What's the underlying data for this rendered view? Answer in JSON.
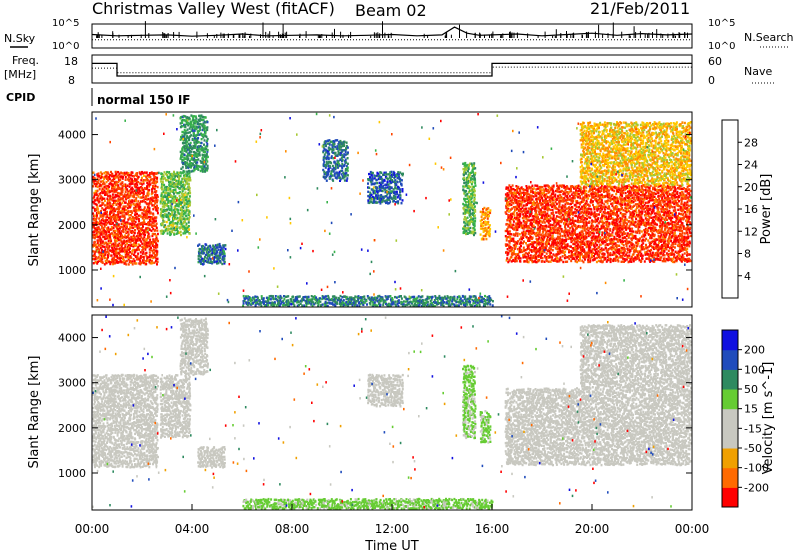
{
  "header": {
    "station": "Christmas Valley West (fitACF)",
    "beam": "Beam 02",
    "date": "21/Feb/2011"
  },
  "left_labels": {
    "nsky": "N.Sky",
    "freq_line1": "Freq.",
    "freq_line2": "[MHz]",
    "cpid": "CPID"
  },
  "right_labels": {
    "nsearch": "N.Search",
    "nave": "Nave"
  },
  "cpid_value": "normal 150 IF",
  "x_axis": {
    "label": "Time UT",
    "ticks": [
      "00:00",
      "04:00",
      "08:00",
      "12:00",
      "16:00",
      "20:00",
      "00:00"
    ]
  },
  "colors": {
    "power_scale": [
      "#1010e0",
      "#1f4ab8",
      "#2f8a5e",
      "#37b24a",
      "#a6c832",
      "#ffc800",
      "#ff8c00",
      "#ff4500",
      "#ff0000"
    ],
    "velocity_scale": [
      "#1010e0",
      "#204cbc",
      "#2e8a60",
      "#66cc33",
      "#c8c8c0",
      "#c8c8c0",
      "#f0a000",
      "#ff6a00",
      "#ff0000"
    ]
  },
  "chart_data": [
    {
      "type": "line",
      "name": "noise-panel",
      "y_tick_labels": [
        "10^5",
        "10^0"
      ],
      "right_y_tick_labels": [
        "10^5",
        "10^0"
      ],
      "xlim": [
        0,
        24
      ],
      "series": [
        {
          "name": "N.Sky",
          "x": [
            0,
            1,
            2,
            3,
            4,
            5,
            6,
            7,
            8,
            9,
            10,
            11,
            12,
            13,
            14,
            14.5,
            15,
            15.5,
            16,
            17,
            18,
            19,
            20,
            21,
            22,
            23,
            24
          ],
          "y": [
            3.1,
            2.8,
            2.9,
            3.0,
            2.7,
            2.9,
            3.2,
            2.8,
            2.9,
            3.0,
            2.8,
            2.9,
            3.1,
            2.8,
            3.0,
            4.8,
            3.4,
            2.9,
            3.0,
            3.2,
            2.8,
            3.1,
            3.4,
            2.9,
            3.3,
            3.0,
            3.2
          ]
        },
        {
          "name": "N.Search",
          "x": [
            0,
            4,
            8,
            12,
            16,
            20,
            24
          ],
          "y": [
            1.9,
            1.9,
            1.9,
            1.9,
            1.9,
            1.9,
            1.9
          ]
        }
      ]
    },
    {
      "type": "line",
      "name": "freq-panel",
      "ylabel_left": "Freq. [MHz]",
      "ylabel_right": "Nave",
      "y_tick_labels": [
        "18",
        "8"
      ],
      "right_y_tick_labels": [
        "60",
        "0"
      ],
      "ylim": [
        8,
        18
      ],
      "right_ylim": [
        0,
        60
      ],
      "series": [
        {
          "name": "Freq.",
          "x": [
            0,
            1,
            1,
            16,
            16,
            24
          ],
          "y": [
            15.0,
            15.0,
            10.5,
            10.5,
            15.0,
            15.0
          ]
        },
        {
          "name": "Nave",
          "x": [
            0,
            1,
            1,
            16,
            16,
            24
          ],
          "y": [
            32,
            32,
            22,
            22,
            34,
            34
          ]
        }
      ]
    },
    {
      "type": "heatmap",
      "name": "power-panel",
      "ylabel": "Slant Range [km]",
      "y_ticks": [
        1000,
        2000,
        3000,
        4000
      ],
      "ylim": [
        180,
        4500
      ],
      "xlim": [
        0,
        24
      ],
      "colorbar": {
        "label": "Power [dB]",
        "ticks": [
          4,
          8,
          12,
          16,
          20,
          24,
          28
        ],
        "range": [
          0,
          32
        ]
      },
      "regions": [
        {
          "t": [
            0.0,
            2.6
          ],
          "r": [
            1150,
            3200
          ],
          "value": 28
        },
        {
          "t": [
            2.7,
            3.9
          ],
          "r": [
            1800,
            3200
          ],
          "value": 14
        },
        {
          "t": [
            3.5,
            4.6
          ],
          "r": [
            3200,
            4450
          ],
          "value": 10
        },
        {
          "t": [
            4.2,
            5.3
          ],
          "r": [
            1150,
            1600
          ],
          "value": 7
        },
        {
          "t": [
            9.2,
            10.2
          ],
          "r": [
            3000,
            3900
          ],
          "value": 7
        },
        {
          "t": [
            11.0,
            12.4
          ],
          "r": [
            2500,
            3200
          ],
          "value": 6
        },
        {
          "t": [
            14.8,
            15.3
          ],
          "r": [
            1800,
            3400
          ],
          "value": 13
        },
        {
          "t": [
            15.5,
            15.9
          ],
          "r": [
            1700,
            2400
          ],
          "value": 22
        },
        {
          "t": [
            16.5,
            24.0
          ],
          "r": [
            1200,
            2900
          ],
          "value": 28
        },
        {
          "t": [
            19.5,
            24.0
          ],
          "r": [
            2900,
            4300
          ],
          "value": 20
        },
        {
          "t": [
            6.0,
            16.0
          ],
          "r": [
            180,
            450
          ],
          "value": 8
        }
      ]
    },
    {
      "type": "heatmap",
      "name": "velocity-panel",
      "ylabel": "Slant Range [km]",
      "y_ticks": [
        1000,
        2000,
        3000,
        4000
      ],
      "ylim": [
        180,
        4500
      ],
      "xlim": [
        0,
        24
      ],
      "colorbar": {
        "label": "Velocity [m s^-1]",
        "ticks": [
          200,
          100,
          50,
          15,
          -15,
          -50,
          -100,
          -200
        ]
      },
      "regions": [
        {
          "t": [
            0.0,
            2.6
          ],
          "r": [
            1150,
            3200
          ],
          "value": 0
        },
        {
          "t": [
            2.7,
            3.9
          ],
          "r": [
            1800,
            3200
          ],
          "value": 0
        },
        {
          "t": [
            3.5,
            4.6
          ],
          "r": [
            3200,
            4450
          ],
          "value": -30
        },
        {
          "t": [
            4.2,
            5.3
          ],
          "r": [
            1150,
            1600
          ],
          "value": -40
        },
        {
          "t": [
            11.0,
            12.4
          ],
          "r": [
            2500,
            3200
          ],
          "value": -40
        },
        {
          "t": [
            14.8,
            15.3
          ],
          "r": [
            1800,
            3400
          ],
          "value": 30
        },
        {
          "t": [
            15.5,
            15.9
          ],
          "r": [
            1700,
            2400
          ],
          "value": 30
        },
        {
          "t": [
            16.5,
            24.0
          ],
          "r": [
            1200,
            2900
          ],
          "value": 0
        },
        {
          "t": [
            19.5,
            24.0
          ],
          "r": [
            2900,
            4300
          ],
          "value": 0
        },
        {
          "t": [
            6.0,
            16.0
          ],
          "r": [
            180,
            450
          ],
          "value": 30
        }
      ]
    }
  ]
}
